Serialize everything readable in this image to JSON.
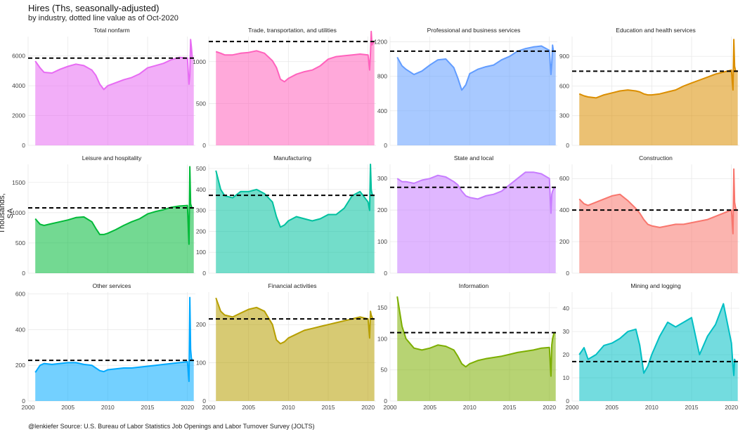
{
  "title": "Hires (Ths, seasonally-adjusted)",
  "subtitle": "by industry, dotted line value as of Oct-2020",
  "ylabel": "Thousands, SA",
  "caption": "@lenkiefer Source: U.S. Bureau of Labor Statistics Job Openings and Labor Turnover Survey (JOLTS)",
  "chart_data": {
    "type": "area",
    "facet": "small-multiples",
    "x_ticks": [
      2000,
      2005,
      2010,
      2015,
      2020
    ],
    "x_range": [
      2000,
      2021
    ],
    "grid": true,
    "reference_line_style": "dashed",
    "panels": [
      {
        "name": "Total nonfarm",
        "color": "#e76bf3",
        "ylim": [
          0,
          7300
        ],
        "yticks": [
          0,
          2000,
          4000,
          6000
        ],
        "ref": 5850,
        "x": [
          2000.9,
          2001.5,
          2002,
          2003,
          2004,
          2005,
          2006,
          2007,
          2008,
          2008.5,
          2009,
          2009.5,
          2010,
          2011,
          2012,
          2013,
          2014,
          2015,
          2016,
          2017,
          2018,
          2019,
          2020.0,
          2020.2,
          2020.3,
          2020.4,
          2020.5,
          2020.6,
          2020.8
        ],
        "values": [
          5650,
          5200,
          4900,
          4850,
          5100,
          5300,
          5450,
          5350,
          5050,
          4700,
          4100,
          3750,
          4000,
          4200,
          4400,
          4550,
          4800,
          5200,
          5350,
          5500,
          5750,
          5900,
          5850,
          4100,
          4700,
          7100,
          6600,
          5900,
          5850
        ]
      },
      {
        "name": "Trade, transportation, and utilities",
        "color": "#ff62bc",
        "ylim": [
          0,
          1300
        ],
        "yticks": [
          0,
          500,
          1000
        ],
        "ref": 1240,
        "x": [
          2000.9,
          2001.5,
          2002,
          2003,
          2004,
          2005,
          2006,
          2007,
          2008,
          2008.5,
          2009,
          2009.5,
          2010,
          2011,
          2012,
          2013,
          2014,
          2015,
          2016,
          2017,
          2018,
          2019,
          2020.0,
          2020.2,
          2020.3,
          2020.4,
          2020.5,
          2020.6,
          2020.8
        ],
        "values": [
          1120,
          1100,
          1080,
          1080,
          1100,
          1110,
          1130,
          1100,
          1010,
          930,
          790,
          760,
          800,
          850,
          880,
          900,
          950,
          1030,
          1060,
          1070,
          1080,
          1090,
          1080,
          900,
          1100,
          1360,
          1200,
          1220,
          1240
        ]
      },
      {
        "name": "Professional and business services",
        "color": "#619cff",
        "ylim": [
          0,
          1260
        ],
        "yticks": [
          0,
          400,
          800,
          1200
        ],
        "ref": 1090,
        "x": [
          2000.9,
          2001.5,
          2002,
          2003,
          2004,
          2005,
          2006,
          2007,
          2008,
          2008.5,
          2009,
          2009.5,
          2010,
          2011,
          2012,
          2013,
          2014,
          2015,
          2016,
          2017,
          2018,
          2019,
          2020.0,
          2020.2,
          2020.3,
          2020.4,
          2020.5,
          2020.6,
          2020.8
        ],
        "values": [
          1020,
          920,
          880,
          820,
          860,
          930,
          990,
          1000,
          900,
          780,
          640,
          700,
          830,
          880,
          910,
          930,
          990,
          1030,
          1090,
          1120,
          1140,
          1150,
          1100,
          820,
          950,
          1160,
          1100,
          1090,
          1090
        ]
      },
      {
        "name": "Education and health services",
        "color": "#db8e00",
        "ylim": [
          0,
          1100
        ],
        "yticks": [
          0,
          300,
          600,
          900
        ],
        "ref": 750,
        "x": [
          2000.9,
          2001.5,
          2002,
          2003,
          2004,
          2005,
          2006,
          2007,
          2008,
          2008.5,
          2009,
          2009.5,
          2010,
          2011,
          2012,
          2013,
          2014,
          2015,
          2016,
          2017,
          2018,
          2019,
          2020.0,
          2020.2,
          2020.3,
          2020.4,
          2020.5,
          2020.6,
          2020.8
        ],
        "values": [
          520,
          500,
          490,
          480,
          510,
          530,
          550,
          560,
          550,
          540,
          520,
          510,
          510,
          520,
          540,
          560,
          600,
          630,
          660,
          690,
          720,
          740,
          760,
          560,
          1070,
          800,
          760,
          750,
          750
        ]
      },
      {
        "name": "Leisure and hospitality",
        "color": "#00ba38",
        "ylim": [
          0,
          1800
        ],
        "yticks": [
          0,
          500,
          1000,
          1500
        ],
        "ref": 1080,
        "x": [
          2000.9,
          2001.5,
          2002,
          2003,
          2004,
          2005,
          2006,
          2007,
          2008,
          2008.5,
          2009,
          2009.5,
          2010,
          2011,
          2012,
          2013,
          2014,
          2015,
          2016,
          2017,
          2018,
          2019,
          2020.0,
          2020.2,
          2020.3,
          2020.4,
          2020.5,
          2020.6,
          2020.8
        ],
        "values": [
          900,
          810,
          790,
          820,
          850,
          880,
          920,
          930,
          850,
          740,
          640,
          640,
          660,
          720,
          790,
          850,
          900,
          980,
          1020,
          1050,
          1090,
          1110,
          1120,
          480,
          1760,
          1150,
          1100,
          1080,
          1080
        ]
      },
      {
        "name": "Manufacturing",
        "color": "#00c19f",
        "ylim": [
          0,
          520
        ],
        "yticks": [
          0,
          100,
          200,
          300,
          400,
          500
        ],
        "ref": 372,
        "x": [
          2000.9,
          2001.5,
          2002,
          2003,
          2004,
          2005,
          2006,
          2007,
          2008,
          2008.5,
          2009,
          2009.5,
          2010,
          2011,
          2012,
          2013,
          2014,
          2015,
          2016,
          2017,
          2018,
          2019,
          2020.0,
          2020.2,
          2020.3,
          2020.4,
          2020.5,
          2020.6,
          2020.8
        ],
        "values": [
          490,
          400,
          370,
          360,
          390,
          390,
          400,
          380,
          340,
          270,
          220,
          230,
          250,
          270,
          260,
          250,
          260,
          280,
          280,
          310,
          370,
          390,
          340,
          300,
          520,
          400,
          380,
          372,
          372
        ]
      },
      {
        "name": "State and local",
        "color": "#c77cff",
        "ylim": [
          0,
          345
        ],
        "yticks": [
          0,
          100,
          200,
          300
        ],
        "ref": 272,
        "x": [
          2000.9,
          2001.5,
          2002,
          2003,
          2004,
          2005,
          2006,
          2007,
          2008,
          2008.5,
          2009,
          2009.5,
          2010,
          2011,
          2012,
          2013,
          2014,
          2015,
          2016,
          2017,
          2018,
          2019,
          2020.0,
          2020.2,
          2020.3,
          2020.4,
          2020.5,
          2020.6,
          2020.8
        ],
        "values": [
          300,
          290,
          290,
          285,
          295,
          300,
          310,
          305,
          290,
          280,
          260,
          245,
          240,
          235,
          245,
          250,
          260,
          280,
          300,
          320,
          320,
          315,
          300,
          190,
          250,
          260,
          265,
          272,
          272
        ]
      },
      {
        "name": "Construction",
        "color": "#f8766d",
        "ylim": [
          0,
          690
        ],
        "yticks": [
          0,
          200,
          400,
          600
        ],
        "ref": 400,
        "x": [
          2000.9,
          2001.5,
          2002,
          2003,
          2004,
          2005,
          2006,
          2007,
          2008,
          2008.5,
          2009,
          2009.5,
          2010,
          2011,
          2012,
          2013,
          2014,
          2015,
          2016,
          2017,
          2018,
          2019,
          2020.0,
          2020.2,
          2020.3,
          2020.4,
          2020.5,
          2020.6,
          2020.8
        ],
        "values": [
          470,
          440,
          430,
          450,
          470,
          490,
          500,
          460,
          410,
          380,
          340,
          310,
          300,
          290,
          300,
          310,
          310,
          320,
          330,
          340,
          360,
          380,
          400,
          250,
          660,
          450,
          420,
          400,
          400
        ]
      },
      {
        "name": "Other services",
        "color": "#00a9ff",
        "ylim": [
          0,
          610
        ],
        "yticks": [
          0,
          200,
          400,
          600
        ],
        "ref": 228,
        "x": [
          2000.9,
          2001.5,
          2002,
          2003,
          2004,
          2005,
          2006,
          2007,
          2008,
          2008.5,
          2009,
          2009.5,
          2010,
          2011,
          2012,
          2013,
          2014,
          2015,
          2016,
          2017,
          2018,
          2019,
          2020.0,
          2020.2,
          2020.3,
          2020.4,
          2020.5,
          2020.6,
          2020.8
        ],
        "values": [
          160,
          200,
          210,
          205,
          210,
          215,
          215,
          205,
          200,
          185,
          170,
          165,
          175,
          180,
          185,
          185,
          190,
          195,
          200,
          205,
          210,
          215,
          220,
          110,
          580,
          290,
          240,
          228,
          228
        ]
      },
      {
        "name": "Financial activities",
        "color": "#b79f00",
        "ylim": [
          0,
          285
        ],
        "yticks": [
          0,
          100,
          200
        ],
        "ref": 215,
        "x": [
          2000.9,
          2001.5,
          2002,
          2003,
          2004,
          2005,
          2006,
          2007,
          2008,
          2008.5,
          2009,
          2009.5,
          2010,
          2011,
          2012,
          2013,
          2014,
          2015,
          2016,
          2017,
          2018,
          2019,
          2020.0,
          2020.2,
          2020.3,
          2020.4,
          2020.5,
          2020.6,
          2020.8
        ],
        "values": [
          270,
          235,
          225,
          220,
          230,
          240,
          245,
          235,
          200,
          160,
          150,
          155,
          165,
          175,
          185,
          190,
          195,
          200,
          205,
          210,
          215,
          220,
          215,
          165,
          235,
          225,
          220,
          215,
          215
        ]
      },
      {
        "name": "Information",
        "color": "#7cae00",
        "ylim": [
          0,
          175
        ],
        "yticks": [
          0,
          50,
          100,
          150
        ],
        "ref": 110,
        "x": [
          2000.9,
          2001.5,
          2002,
          2003,
          2004,
          2005,
          2006,
          2007,
          2008,
          2008.5,
          2009,
          2009.5,
          2010,
          2011,
          2012,
          2013,
          2014,
          2015,
          2016,
          2017,
          2018,
          2019,
          2020.0,
          2020.2,
          2020.3,
          2020.4,
          2020.5,
          2020.6,
          2020.8
        ],
        "values": [
          168,
          120,
          100,
          85,
          82,
          85,
          90,
          88,
          82,
          72,
          60,
          55,
          60,
          65,
          68,
          70,
          72,
          75,
          78,
          80,
          82,
          85,
          86,
          40,
          90,
          100,
          105,
          110,
          110
        ]
      },
      {
        "name": "Mining and logging",
        "color": "#00bfc4",
        "ylim": [
          0,
          47
        ],
        "yticks": [
          0,
          10,
          20,
          30,
          40
        ],
        "ref": 17,
        "x": [
          2000.9,
          2001.5,
          2002,
          2003,
          2004,
          2005,
          2006,
          2007,
          2008,
          2008.5,
          2009,
          2009.5,
          2010,
          2011,
          2012,
          2013,
          2014,
          2015,
          2016,
          2017,
          2018,
          2019,
          2020.0,
          2020.2,
          2020.3,
          2020.4,
          2020.5,
          2020.6,
          2020.8
        ],
        "values": [
          20,
          23,
          18,
          20,
          24,
          25,
          27,
          30,
          31,
          24,
          12,
          15,
          20,
          28,
          34,
          32,
          34,
          36,
          20,
          28,
          33,
          42,
          25,
          15,
          11,
          18,
          17,
          17,
          17
        ]
      }
    ]
  }
}
